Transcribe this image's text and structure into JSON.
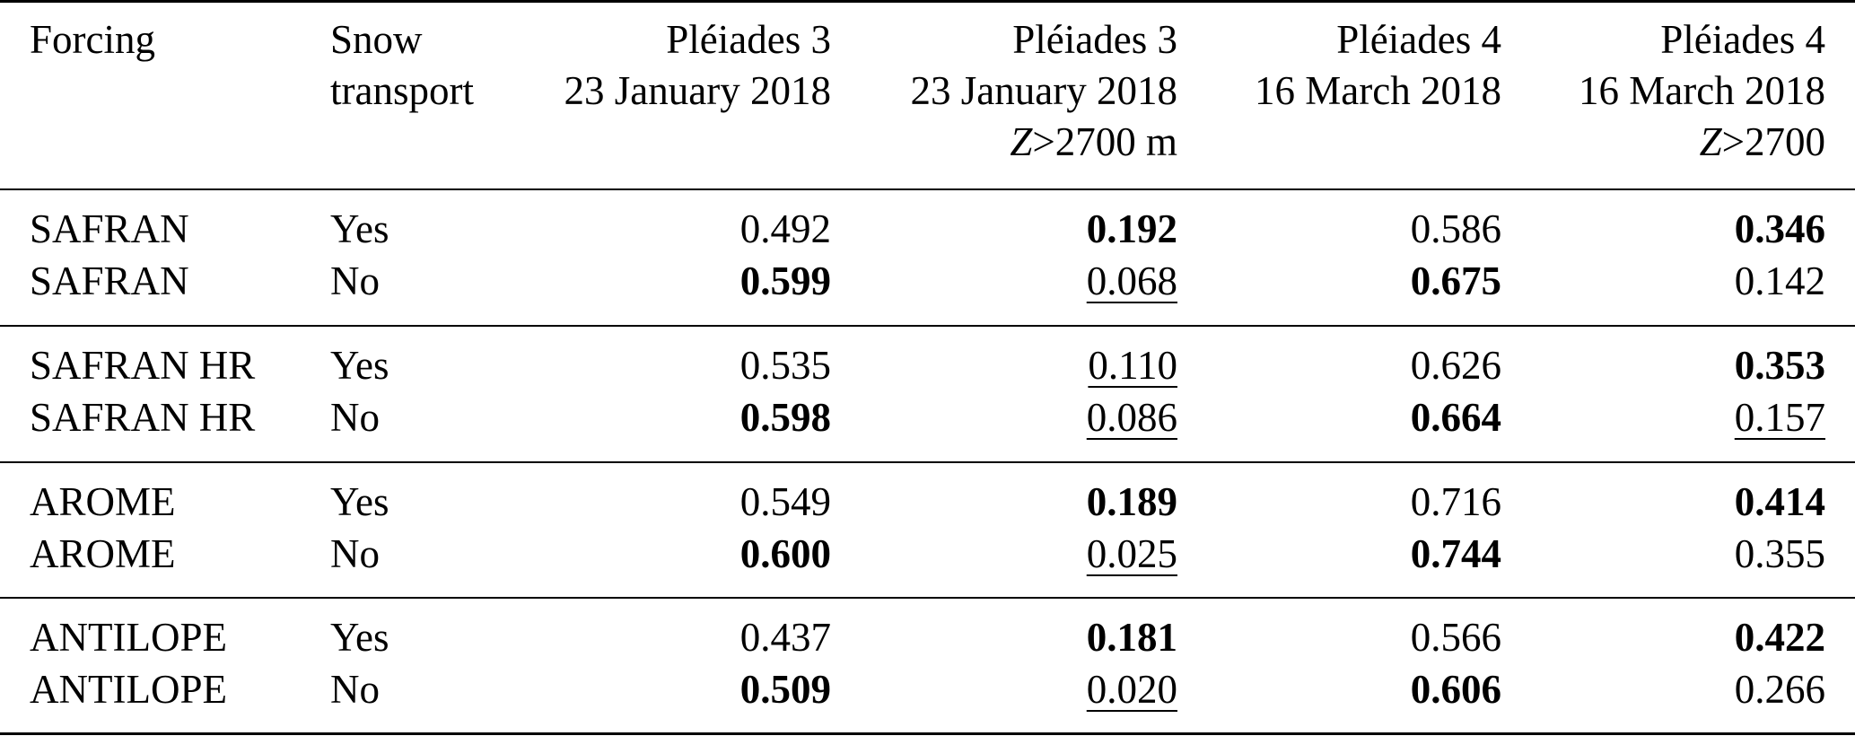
{
  "header": {
    "forcing": "Forcing",
    "snow_transport": [
      "Snow",
      "transport"
    ],
    "col1": [
      "Pléiades 3",
      "23 January 2018"
    ],
    "col2": [
      "Pléiades 3",
      "23 January 2018"
    ],
    "col2_cond": {
      "var": "Z",
      "op": ">",
      "val": "2700 m"
    },
    "col3": [
      "Pléiades 4",
      "16 March 2018"
    ],
    "col4": [
      "Pléiades 4",
      "16 March 2018"
    ],
    "col4_cond": {
      "var": "Z",
      "op": ">",
      "val": "2700"
    }
  },
  "rows": [
    {
      "forcing": "SAFRAN",
      "transport": "Yes",
      "c1": {
        "v": "0.492",
        "b": false,
        "u": false
      },
      "c2": {
        "v": "0.192",
        "b": true,
        "u": false
      },
      "c3": {
        "v": "0.586",
        "b": false,
        "u": false
      },
      "c4": {
        "v": "0.346",
        "b": true,
        "u": false
      }
    },
    {
      "forcing": "SAFRAN",
      "transport": "No",
      "c1": {
        "v": "0.599",
        "b": true,
        "u": false
      },
      "c2": {
        "v": "0.068",
        "b": false,
        "u": true
      },
      "c3": {
        "v": "0.675",
        "b": true,
        "u": false
      },
      "c4": {
        "v": "0.142",
        "b": false,
        "u": false
      }
    },
    {
      "forcing": "SAFRAN HR",
      "transport": "Yes",
      "c1": {
        "v": "0.535",
        "b": false,
        "u": false
      },
      "c2": {
        "v": "0.110",
        "b": false,
        "u": true
      },
      "c3": {
        "v": "0.626",
        "b": false,
        "u": false
      },
      "c4": {
        "v": "0.353",
        "b": true,
        "u": false
      }
    },
    {
      "forcing": "SAFRAN HR",
      "transport": "No",
      "c1": {
        "v": "0.598",
        "b": true,
        "u": false
      },
      "c2": {
        "v": "0.086",
        "b": false,
        "u": true
      },
      "c3": {
        "v": "0.664",
        "b": true,
        "u": false
      },
      "c4": {
        "v": "0.157",
        "b": false,
        "u": true
      }
    },
    {
      "forcing": "AROME",
      "transport": "Yes",
      "c1": {
        "v": "0.549",
        "b": false,
        "u": false
      },
      "c2": {
        "v": "0.189",
        "b": true,
        "u": false
      },
      "c3": {
        "v": "0.716",
        "b": false,
        "u": false
      },
      "c4": {
        "v": "0.414",
        "b": true,
        "u": false
      }
    },
    {
      "forcing": "AROME",
      "transport": "No",
      "c1": {
        "v": "0.600",
        "b": true,
        "u": false
      },
      "c2": {
        "v": "0.025",
        "b": false,
        "u": true
      },
      "c3": {
        "v": "0.744",
        "b": true,
        "u": false
      },
      "c4": {
        "v": "0.355",
        "b": false,
        "u": false
      }
    },
    {
      "forcing": "ANTILOPE",
      "transport": "Yes",
      "c1": {
        "v": "0.437",
        "b": false,
        "u": false
      },
      "c2": {
        "v": "0.181",
        "b": true,
        "u": false
      },
      "c3": {
        "v": "0.566",
        "b": false,
        "u": false
      },
      "c4": {
        "v": "0.422",
        "b": true,
        "u": false
      }
    },
    {
      "forcing": "ANTILOPE",
      "transport": "No",
      "c1": {
        "v": "0.509",
        "b": true,
        "u": false
      },
      "c2": {
        "v": "0.020",
        "b": false,
        "u": true
      },
      "c3": {
        "v": "0.606",
        "b": true,
        "u": false
      },
      "c4": {
        "v": "0.266",
        "b": false,
        "u": false
      }
    }
  ]
}
